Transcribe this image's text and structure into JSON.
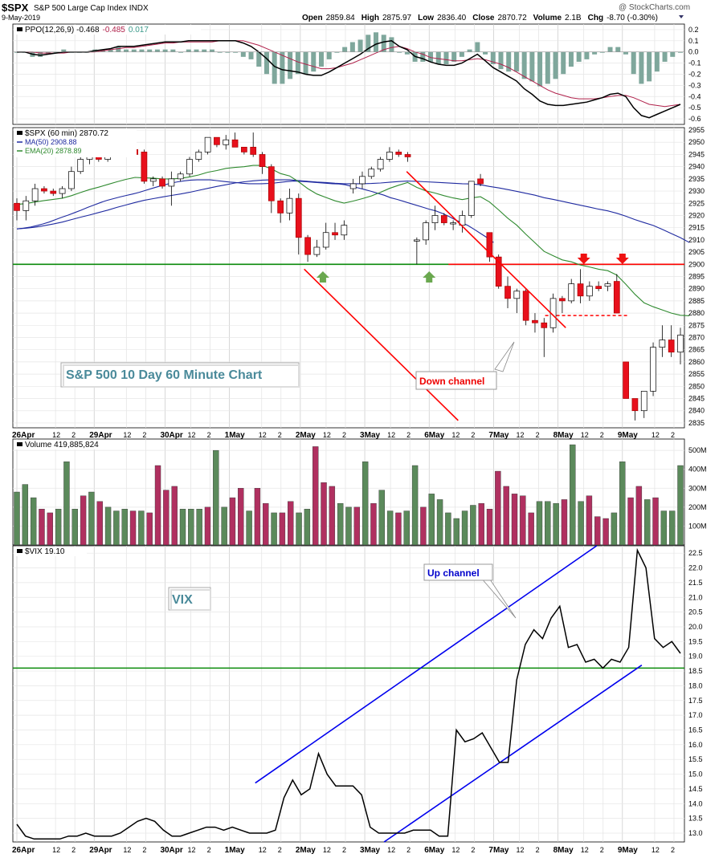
{
  "header": {
    "symbol": "$SPX",
    "name": "S&P 500 Large Cap Index",
    "exchange": "INDX",
    "watermark": "@ StockCharts.com",
    "date": "9-May-2019",
    "quote": {
      "open_label": "Open",
      "open": "2859.84",
      "high_label": "High",
      "high": "2875.97",
      "low_label": "Low",
      "low": "2836.40",
      "close_label": "Close",
      "close": "2870.72",
      "volume_label": "Volume",
      "volume": "2.1B",
      "chg_label": "Chg",
      "chg": "-8.70 (-0.30%)"
    }
  },
  "colors": {
    "up": "#ffffff",
    "down": "#e8101c",
    "ma50": "#1f2aa0",
    "ema20": "#2f8a2f",
    "volume_up": "#5b8a5b",
    "volume_down": "#b03060",
    "support": "#0a8a0a",
    "red_line": "#ff0000",
    "blue_line": "#0000ee"
  },
  "chart_data": [
    {
      "panel": "ppo",
      "type": "line",
      "legend": {
        "label": "PPO(12,26,9)",
        "ppo": "-0.468",
        "signal": "-0.485",
        "histogram": "0.017"
      },
      "ylim": [
        -0.65,
        0.25
      ],
      "yticks": [
        "0.2",
        "0.1",
        "0.0",
        "-0.1",
        "-0.2",
        "-0.3",
        "-0.4",
        "-0.5",
        "-0.6"
      ],
      "ppo": [
        0.0,
        0.0,
        -0.02,
        -0.03,
        -0.02,
        -0.01,
        0.0,
        0.0,
        0.0,
        0.0,
        0.01,
        0.02,
        0.03,
        0.05,
        0.05,
        0.05,
        0.06,
        0.07,
        0.08,
        0.09,
        0.09,
        0.09,
        0.1,
        0.1,
        0.1,
        0.1,
        0.1,
        0.1,
        0.1,
        0.08,
        0.05,
        0.0,
        -0.06,
        -0.13,
        -0.16,
        -0.17,
        -0.18,
        -0.2,
        -0.21,
        -0.21,
        -0.18,
        -0.14,
        -0.1,
        -0.06,
        -0.02,
        0.03,
        0.07,
        0.09,
        0.1,
        0.05,
        0.02,
        -0.04,
        -0.06,
        -0.09,
        -0.11,
        -0.12,
        -0.12,
        -0.1,
        -0.06,
        -0.02,
        -0.08,
        -0.14,
        -0.18,
        -0.22,
        -0.26,
        -0.33,
        -0.38,
        -0.44,
        -0.47,
        -0.48,
        -0.48,
        -0.47,
        -0.46,
        -0.45,
        -0.43,
        -0.41,
        -0.38,
        -0.37,
        -0.4,
        -0.5,
        -0.57,
        -0.59,
        -0.56,
        -0.53,
        -0.5,
        -0.47
      ],
      "signal": [
        0.0,
        0.0,
        0.0,
        -0.01,
        -0.01,
        -0.01,
        -0.01,
        0.0,
        0.0,
        0.0,
        0.0,
        0.01,
        0.02,
        0.03,
        0.04,
        0.04,
        0.05,
        0.06,
        0.07,
        0.08,
        0.08,
        0.09,
        0.09,
        0.09,
        0.09,
        0.09,
        0.1,
        0.1,
        0.1,
        0.1,
        0.08,
        0.06,
        0.03,
        0.0,
        -0.03,
        -0.06,
        -0.09,
        -0.11,
        -0.13,
        -0.15,
        -0.15,
        -0.14,
        -0.12,
        -0.1,
        -0.07,
        -0.04,
        -0.01,
        0.02,
        0.04,
        0.05,
        0.03,
        0.0,
        -0.02,
        -0.05,
        -0.06,
        -0.07,
        -0.08,
        -0.08,
        -0.07,
        -0.06,
        -0.07,
        -0.09,
        -0.11,
        -0.14,
        -0.18,
        -0.22,
        -0.26,
        -0.3,
        -0.34,
        -0.37,
        -0.39,
        -0.41,
        -0.42,
        -0.42,
        -0.42,
        -0.41,
        -0.4,
        -0.39,
        -0.39,
        -0.41,
        -0.44,
        -0.47,
        -0.48,
        -0.49,
        -0.48,
        -0.47
      ]
    },
    {
      "panel": "price",
      "type": "candlestick",
      "legend": {
        "symbol": "$SPX (60 min) 2870.72",
        "ma": "MA(50) 2908.88",
        "ema": "EMA(20) 2878.89"
      },
      "ylim": [
        2833,
        2956
      ],
      "yticks": [
        "2955",
        "2950",
        "2945",
        "2940",
        "2935",
        "2930",
        "2925",
        "2920",
        "2915",
        "2910",
        "2905",
        "2900",
        "2895",
        "2890",
        "2885",
        "2880",
        "2875",
        "2870",
        "2865",
        "2860",
        "2855",
        "2850",
        "2845",
        "2840",
        "2835"
      ],
      "candles": [
        [
          2925,
          2927,
          2918,
          2922
        ],
        [
          2922,
          2928,
          2918,
          2926
        ],
        [
          2926,
          2933,
          2924,
          2931
        ],
        [
          2931,
          2932,
          2929,
          2930
        ],
        [
          2930,
          2931,
          2928,
          2929
        ],
        [
          2929,
          2932,
          2927,
          2931
        ],
        [
          2931,
          2940,
          2930,
          2938
        ],
        [
          2938,
          2944,
          2937,
          2943
        ],
        [
          2943,
          2946,
          2941,
          2944
        ],
        [
          2944,
          2946,
          2942,
          2943
        ],
        [
          2943,
          2949,
          2942,
          2948
        ],
        [
          2948,
          2950,
          2947,
          2948
        ],
        [
          2948,
          2950,
          2946,
          2947
        ],
        [
          2947,
          2949,
          2944,
          2945
        ],
        [
          2946,
          2947,
          2933,
          2934
        ],
        [
          2934,
          2936,
          2932,
          2935
        ],
        [
          2935,
          2936,
          2931,
          2932
        ],
        [
          2932,
          2938,
          2924,
          2935
        ],
        [
          2935,
          2938,
          2934,
          2937
        ],
        [
          2937,
          2944,
          2936,
          2943
        ],
        [
          2943,
          2947,
          2942,
          2946
        ],
        [
          2946,
          2952,
          2945,
          2952
        ],
        [
          2952,
          2952,
          2948,
          2949
        ],
        [
          2949,
          2953,
          2947,
          2951
        ],
        [
          2951,
          2954,
          2948,
          2948
        ],
        [
          2948,
          2948,
          2945,
          2946
        ],
        [
          2948,
          2954,
          2944,
          2945
        ],
        [
          2945,
          2946,
          2937,
          2940
        ],
        [
          2940,
          2941,
          2921,
          2926
        ],
        [
          2926,
          2927,
          2917,
          2921
        ],
        [
          2921,
          2931,
          2918,
          2927
        ],
        [
          2927,
          2929,
          2904,
          2911
        ],
        [
          2911,
          2912,
          2901,
          2904
        ],
        [
          2904,
          2910,
          2903,
          2907
        ],
        [
          2907,
          2917,
          2906,
          2913
        ],
        [
          2913,
          2917,
          2910,
          2912
        ],
        [
          2912,
          2918,
          2910,
          2916
        ],
        [
          2931,
          2935,
          2929,
          2933
        ],
        [
          2933,
          2938,
          2931,
          2936
        ],
        [
          2936,
          2940,
          2935,
          2939
        ],
        [
          2939,
          2944,
          2938,
          2943
        ],
        [
          2943,
          2948,
          2942,
          2946
        ],
        [
          2946,
          2947,
          2944,
          2945
        ],
        [
          2945,
          2946,
          2942,
          2944
        ],
        [
          2910,
          2911,
          2900,
          2910
        ],
        [
          2910,
          2918,
          2908,
          2917
        ],
        [
          2917,
          2924,
          2914,
          2920
        ],
        [
          2920,
          2921,
          2916,
          2917
        ],
        [
          2917,
          2918,
          2914,
          2917
        ],
        [
          2916,
          2922,
          2913,
          2920
        ],
        [
          2920,
          2934,
          2919,
          2934
        ],
        [
          2935,
          2937,
          2932,
          2933
        ],
        [
          2913,
          2913,
          2901,
          2903
        ],
        [
          2903,
          2904,
          2890,
          2891
        ],
        [
          2891,
          2895,
          2882,
          2886
        ],
        [
          2886,
          2890,
          2880,
          2889
        ],
        [
          2889,
          2890,
          2875,
          2877
        ],
        [
          2877,
          2880,
          2872,
          2876
        ],
        [
          2876,
          2878,
          2862,
          2874
        ],
        [
          2874,
          2888,
          2872,
          2886
        ],
        [
          2886,
          2887,
          2880,
          2885
        ],
        [
          2885,
          2894,
          2884,
          2892
        ],
        [
          2892,
          2898,
          2884,
          2887
        ],
        [
          2887,
          2893,
          2885,
          2891
        ],
        [
          2891,
          2893,
          2889,
          2890
        ],
        [
          2891,
          2893,
          2889,
          2892
        ],
        [
          2893,
          2896,
          2880,
          2880
        ],
        [
          2860,
          2860,
          2845,
          2845
        ],
        [
          2845,
          2845,
          2836,
          2840
        ],
        [
          2840,
          2848,
          2837,
          2848
        ],
        [
          2848,
          2868,
          2846,
          2866
        ],
        [
          2866,
          2875,
          2862,
          2869
        ],
        [
          2869,
          2875,
          2862,
          2864
        ],
        [
          2864,
          2874,
          2859,
          2871
        ]
      ],
      "ma50": [
        2914.5,
        2914.8,
        2915.2,
        2915.8,
        2916.5,
        2917.3,
        2918.3,
        2919.3,
        2920.2,
        2921.2,
        2922.2,
        2923.3,
        2924.3,
        2925.3,
        2926.2,
        2926.9,
        2927.6,
        2928.2,
        2928.8,
        2929.5,
        2930.3,
        2931.1,
        2931.9,
        2932.6,
        2933.3,
        2933.8,
        2934.2,
        2934.5,
        2934.6,
        2934.6,
        2934.6,
        2934.3,
        2934.0,
        2933.7,
        2933.5,
        2933.2,
        2933.0,
        2933.0,
        2933.0,
        2933.1,
        2933.3,
        2933.6,
        2933.9,
        2934.1,
        2934.0,
        2933.8,
        2933.6,
        2933.4,
        2933.2,
        2933.0,
        2932.9,
        2932.6,
        2931.9,
        2931.3,
        2930.6,
        2929.9,
        2929.1,
        2928.3,
        2927.3,
        2926.6,
        2925.8,
        2925.0,
        2924.2,
        2923.4,
        2922.6,
        2921.9,
        2920.9,
        2919.7,
        2918.3,
        2917.1,
        2915.9,
        2914.3,
        2912.6,
        2910.9,
        2908.9
      ],
      "ema20": [
        2924.5,
        2924.9,
        2925.5,
        2926.1,
        2926.6,
        2927.1,
        2928.1,
        2929.4,
        2930.6,
        2931.6,
        2932.7,
        2933.8,
        2934.8,
        2935.6,
        2935.4,
        2935.3,
        2935.0,
        2935.0,
        2935.2,
        2935.8,
        2936.6,
        2937.7,
        2938.4,
        2939.3,
        2939.7,
        2940.0,
        2940.5,
        2940.5,
        2939.1,
        2937.2,
        2936.2,
        2933.8,
        2931.0,
        2928.8,
        2927.4,
        2926.0,
        2925.1,
        2925.9,
        2926.9,
        2928.0,
        2929.5,
        2931.1,
        2932.4,
        2933.5,
        2931.5,
        2930.1,
        2929.2,
        2928.1,
        2927.2,
        2926.5,
        2927.2,
        2927.7,
        2925.5,
        2922.3,
        2918.9,
        2916.0,
        2912.3,
        2908.8,
        2905.3,
        2903.5,
        2901.8,
        2901.0,
        2899.7,
        2898.9,
        2898.0,
        2897.4,
        2895.6,
        2891.8,
        2887.7,
        2884.2,
        2882.6,
        2881.3,
        2880.0,
        2879.1,
        2878.9
      ],
      "support_line": 2900,
      "resistance_line": 2900,
      "dashed_level": 2879,
      "channel_upper": [
        [
          60.5,
          2938
        ],
        [
          85.2,
          2874
        ]
      ],
      "channel_lower": [
        [
          44.6,
          2898
        ],
        [
          68.5,
          2836
        ]
      ],
      "annotations": {
        "title": "S&P 500 10 Day 60 Minute Chart",
        "down_channel": "Down channel"
      }
    },
    {
      "panel": "volume",
      "type": "bar",
      "legend": "Volume 419,885,824",
      "ylim": [
        0,
        560
      ],
      "yticks": [
        "500M",
        "400M",
        "300M",
        "200M",
        "100M"
      ],
      "values": [
        280,
        320,
        250,
        190,
        170,
        190,
        440,
        190,
        260,
        280,
        230,
        200,
        180,
        190,
        180,
        180,
        170,
        420,
        290,
        310,
        190,
        190,
        190,
        200,
        500,
        200,
        250,
        300,
        180,
        300,
        220,
        170,
        170,
        230,
        170,
        190,
        520,
        330,
        310,
        220,
        200,
        200,
        440,
        220,
        290,
        180,
        170,
        180,
        420,
        200,
        270,
        240,
        170,
        140,
        180,
        210,
        220,
        190,
        390,
        310,
        270,
        260,
        170,
        230,
        230,
        220,
        240,
        530,
        230,
        260,
        150,
        140,
        170,
        440,
        250,
        310,
        240,
        250,
        180,
        180,
        420
      ],
      "up": [
        1,
        1,
        1,
        0,
        0,
        1,
        1,
        1,
        0,
        1,
        0,
        1,
        1,
        1,
        0,
        1,
        0,
        0,
        0,
        0,
        1,
        1,
        1,
        0,
        1,
        1,
        0,
        0,
        1,
        0,
        0,
        1,
        0,
        0,
        1,
        1,
        0,
        0,
        0,
        1,
        1,
        0,
        1,
        0,
        1,
        1,
        0,
        1,
        1,
        0,
        1,
        1,
        1,
        1,
        1,
        1,
        0,
        0,
        0,
        0,
        0,
        0,
        0,
        1,
        1,
        1,
        0,
        1,
        1,
        0,
        0,
        0,
        1,
        1,
        0,
        0,
        1,
        0,
        1,
        1,
        1
      ]
    },
    {
      "panel": "vix",
      "type": "line",
      "legend": "$VIX 19.10",
      "ylim": [
        12.7,
        22.75
      ],
      "yticks": [
        "22.5",
        "22.0",
        "21.5",
        "21.0",
        "20.5",
        "20.0",
        "19.5",
        "19.0",
        "18.5",
        "18.0",
        "17.5",
        "17.0",
        "16.5",
        "16.0",
        "15.5",
        "15.0",
        "14.5",
        "14.0",
        "13.5",
        "13.0"
      ],
      "values": [
        13.3,
        12.9,
        12.8,
        12.8,
        12.8,
        12.8,
        12.9,
        12.9,
        13.0,
        12.9,
        12.9,
        12.9,
        13.0,
        13.2,
        13.4,
        13.5,
        13.4,
        13.1,
        12.9,
        12.9,
        13.0,
        13.1,
        13.2,
        13.2,
        13.1,
        13.2,
        13.1,
        13.0,
        13.0,
        13.0,
        13.1,
        14.2,
        14.8,
        14.3,
        14.5,
        15.7,
        15.0,
        14.6,
        14.6,
        14.6,
        14.3,
        13.2,
        13.0,
        13.0,
        13.0,
        13.0,
        13.1,
        13.1,
        13.1,
        12.9,
        12.9,
        16.5,
        16.1,
        16.2,
        16.4,
        15.9,
        15.4,
        15.4,
        18.2,
        19.4,
        19.9,
        19.6,
        20.3,
        20.7,
        19.3,
        19.4,
        18.8,
        18.9,
        18.6,
        18.9,
        18.8,
        19.3,
        22.6,
        22.0,
        19.6,
        19.3,
        19.5,
        19.1
      ],
      "support_line": 18.6,
      "channel_upper": [
        [
          37.0,
          14.7
        ],
        [
          90.0,
          22.75
        ]
      ],
      "channel_lower": [
        [
          57.0,
          12.7
        ],
        [
          97.0,
          18.7
        ]
      ],
      "annotations": {
        "title": "VIX",
        "up_channel": "Up channel"
      }
    }
  ],
  "xaxis": {
    "labels": [
      {
        "i": 0,
        "t": "26Apr",
        "bold": true
      },
      {
        "i": 6,
        "t": "12"
      },
      {
        "i": 9,
        "t": "2"
      },
      {
        "i": 12,
        "t": "29Apr",
        "bold": true
      },
      {
        "i": 17,
        "t": "12"
      },
      {
        "i": 20,
        "t": "2"
      },
      {
        "i": 23,
        "t": "30Apr",
        "bold": true
      },
      {
        "i": 27,
        "t": "12"
      },
      {
        "i": 30,
        "t": "2"
      },
      {
        "i": 33,
        "t": "1May",
        "bold": true
      },
      {
        "i": 38,
        "t": "12"
      },
      {
        "i": 41,
        "t": "2"
      },
      {
        "i": 44,
        "t": "2May",
        "bold": true
      },
      {
        "i": 48,
        "t": "12"
      },
      {
        "i": 51,
        "t": "2"
      },
      {
        "i": 54,
        "t": "3May",
        "bold": true
      },
      {
        "i": 58,
        "t": "12"
      },
      {
        "i": 61,
        "t": "2"
      },
      {
        "i": 64,
        "t": "6May",
        "bold": true
      },
      {
        "i": 68,
        "t": "12"
      },
      {
        "i": 71,
        "t": "2"
      },
      {
        "i": 74,
        "t": "7May",
        "bold": true
      },
      {
        "i": 78,
        "t": "12"
      },
      {
        "i": 81,
        "t": "2"
      },
      {
        "i": 84,
        "t": "8May",
        "bold": true
      },
      {
        "i": 88,
        "t": "12"
      },
      {
        "i": 91,
        "t": "2"
      },
      {
        "i": 94,
        "t": "9May",
        "bold": true
      },
      {
        "i": 99,
        "t": "12"
      },
      {
        "i": 102,
        "t": "2"
      }
    ]
  }
}
